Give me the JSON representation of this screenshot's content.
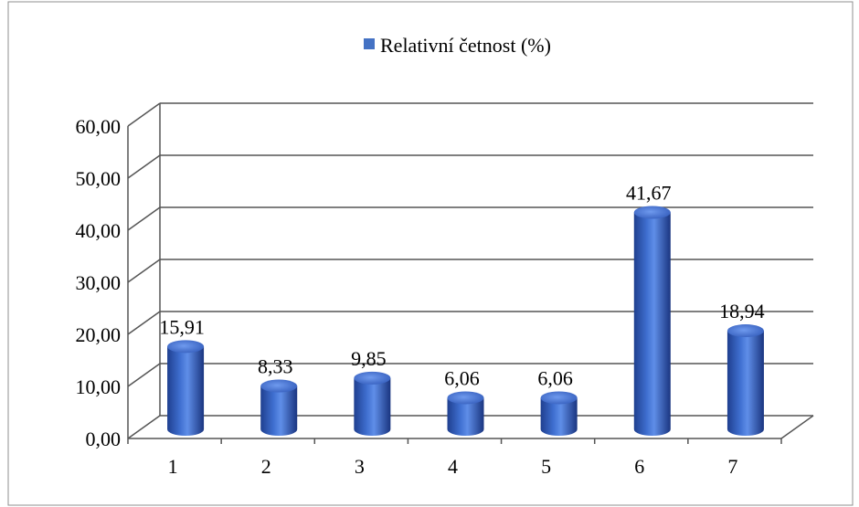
{
  "chart_data": {
    "type": "bar",
    "style": "3d-cylinder",
    "categories": [
      "1",
      "2",
      "3",
      "4",
      "5",
      "6",
      "7"
    ],
    "series": [
      {
        "name": "Relativní četnost (%)",
        "values": [
          15.91,
          8.33,
          9.85,
          6.06,
          6.06,
          41.67,
          18.94
        ],
        "value_labels": [
          "15,91",
          "8,33",
          "9,85",
          "6,06",
          "6,06",
          "41,67",
          "18,94"
        ],
        "color": "#4472C4"
      }
    ],
    "yticks": [
      0,
      10,
      20,
      30,
      40,
      50,
      60
    ],
    "ytick_labels": [
      "0,00",
      "10,00",
      "20,00",
      "30,00",
      "40,00",
      "50,00",
      "60,00"
    ],
    "ylim": [
      0,
      60
    ],
    "grid": true,
    "legend_position": "top-center"
  }
}
